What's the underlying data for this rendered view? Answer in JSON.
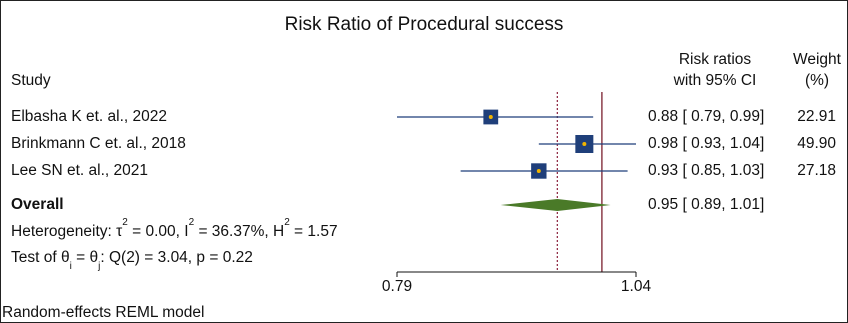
{
  "chart_data": {
    "type": "forest",
    "title": "Risk Ratio of Procedural success",
    "columns": {
      "study": "Study",
      "estimate_line1": "Risk ratios",
      "estimate_line2": "with 95% CI",
      "weight_line1": "Weight",
      "weight_line2": "(%)"
    },
    "studies": [
      {
        "label": "Elbasha K et. al., 2022",
        "rr": 0.88,
        "lower": 0.79,
        "upper": 0.99,
        "ci_text": "0.88 [ 0.79, 0.99]",
        "weight": 22.91,
        "weight_text": "22.91"
      },
      {
        "label": "Brinkmann C et. al., 2018",
        "rr": 0.98,
        "lower": 0.93,
        "upper": 1.04,
        "ci_text": "0.98 [ 0.93, 1.04]",
        "weight": 49.9,
        "weight_text": "49.90"
      },
      {
        "label": "Lee SN et. al., 2021",
        "rr": 0.93,
        "lower": 0.85,
        "upper": 1.03,
        "ci_text": "0.93 [ 0.85, 1.03]",
        "weight": 27.18,
        "weight_text": "27.18"
      }
    ],
    "overall": {
      "label": "Overall",
      "rr": 0.95,
      "lower": 0.89,
      "upper": 1.01,
      "ci_text": "0.95 [ 0.89, 1.01]"
    },
    "heterogeneity": {
      "prefix": "Heterogeneity: τ",
      "tau2_sup": "2",
      "tau2_val": " = 0.00, I",
      "i2_sup": "2",
      "i2_val": " = 36.37%, H",
      "h2_sup": "2",
      "h2_val": " = 1.57"
    },
    "test": {
      "prefix": "Test of θ",
      "sub_i": "i",
      "mid": " = θ",
      "sub_j": "j",
      "rest": ": Q(2) = 3.04, p = 0.22"
    },
    "xaxis": {
      "ticks": [
        0.79,
        1.04
      ],
      "tick_labels": [
        "0.79",
        "1.04"
      ],
      "scale": "log"
    },
    "reference_line": 1,
    "overall_line": 0.95,
    "model_note": "Random-effects REML model",
    "colors": {
      "square": "#1f3f7a",
      "point": "#f0b400",
      "diamond": "#4a7a28",
      "ci_line": "#1f3f7a",
      "ref_line": "#7a1f2e",
      "overall_line": "#8a1f3a"
    }
  }
}
